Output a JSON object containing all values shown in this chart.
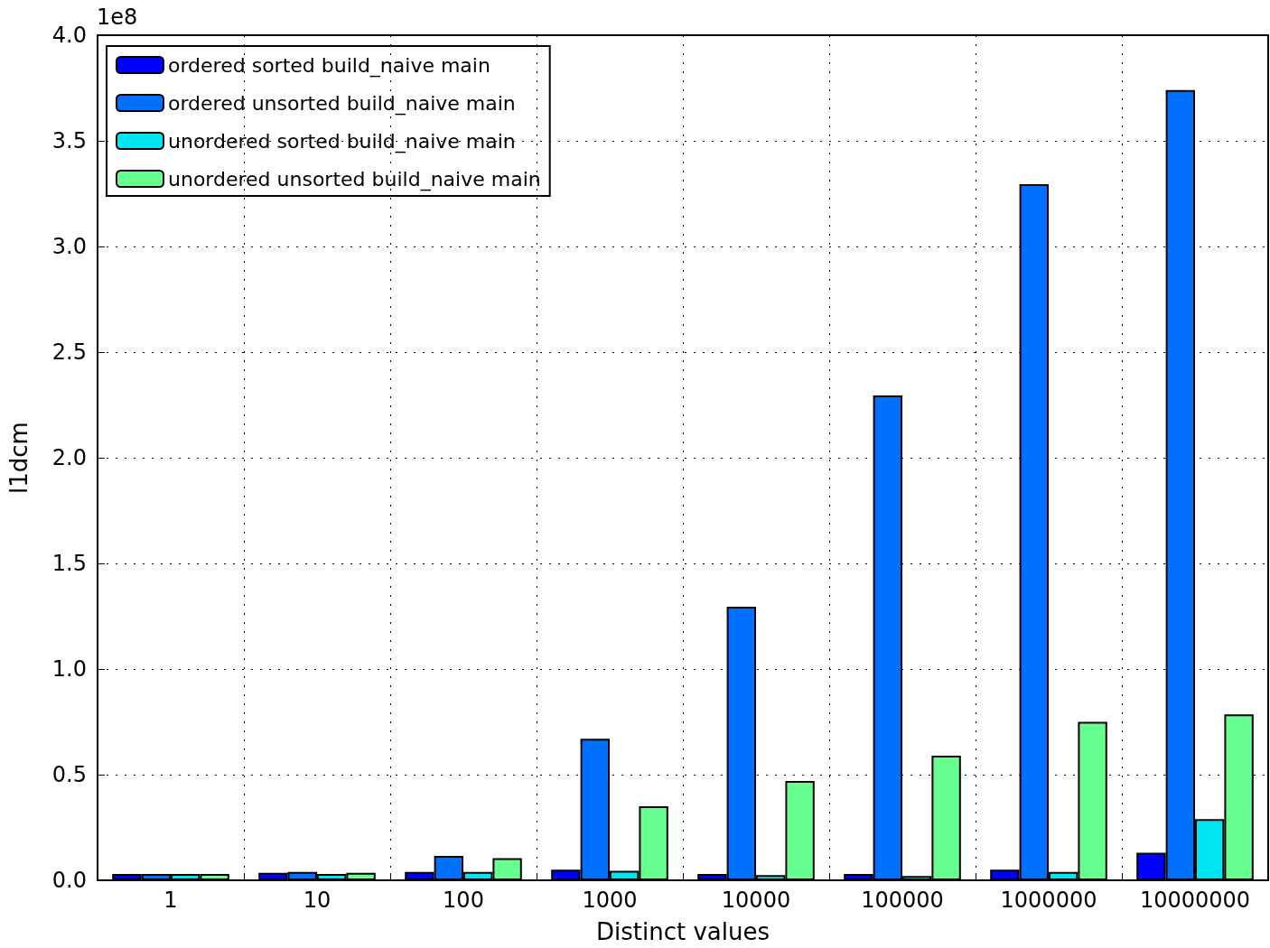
{
  "chart_data": {
    "type": "bar",
    "xlabel": "Distinct values",
    "ylabel": "l1dcm",
    "annotations": [
      "1e8"
    ],
    "categories": [
      "1",
      "10",
      "100",
      "1000",
      "10000",
      "100000",
      "1000000",
      "10000000"
    ],
    "series": [
      {
        "name": "ordered sorted build_naive main",
        "color": "#0000ff",
        "values": [
          0.03,
          0.035,
          0.04,
          0.05,
          0.03,
          0.03,
          0.05,
          0.13
        ]
      },
      {
        "name": "ordered unsorted build_naive main",
        "color": "#0070ff",
        "values": [
          0.03,
          0.04,
          0.115,
          0.67,
          1.295,
          2.295,
          3.295,
          3.74
        ]
      },
      {
        "name": "unordered sorted build_naive main",
        "color": "#00e5f0",
        "values": [
          0.03,
          0.03,
          0.04,
          0.045,
          0.025,
          0.02,
          0.04,
          0.29
        ]
      },
      {
        "name": "unordered unsorted build_naive main",
        "color": "#66ff90",
        "values": [
          0.03,
          0.035,
          0.105,
          0.35,
          0.47,
          0.59,
          0.75,
          0.785
        ]
      }
    ],
    "ylim": [
      0,
      4
    ],
    "yticks": [
      {
        "value": 0,
        "label": "0.0"
      },
      {
        "value": 0.5,
        "label": "0.5"
      },
      {
        "value": 1,
        "label": "1.0"
      },
      {
        "value": 1.5,
        "label": "1.5"
      },
      {
        "value": 2,
        "label": "2.0"
      },
      {
        "value": 2.5,
        "label": "2.5"
      },
      {
        "value": 3,
        "label": "3.0"
      },
      {
        "value": 3.5,
        "label": "3.5"
      },
      {
        "value": 4,
        "label": "4.0"
      }
    ],
    "grid": true,
    "legend": "top left"
  }
}
